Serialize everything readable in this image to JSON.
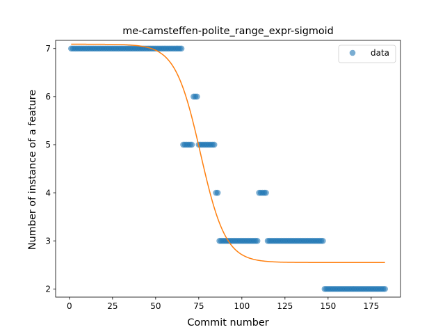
{
  "chart_data": {
    "type": "scatter",
    "title": "me-camsteffen-polite_range_expr-sigmoid",
    "xlabel": "Commit number",
    "ylabel": "Number of instance of a feature",
    "xlim": [
      -8,
      192
    ],
    "ylim": [
      1.83,
      7.17
    ],
    "xticks": [
      0,
      25,
      50,
      75,
      100,
      125,
      150,
      175
    ],
    "yticks": [
      2,
      3,
      4,
      5,
      6,
      7
    ],
    "legend": {
      "position": "top-right",
      "entries": [
        "data"
      ]
    },
    "colors": {
      "data": "#1f77b4",
      "fit": "#ff7f0e"
    },
    "series": [
      {
        "name": "data",
        "kind": "scatter",
        "runs": [
          {
            "x_start": 1,
            "x_end": 65,
            "y": 7
          },
          {
            "x_start": 66,
            "x_end": 71,
            "y": 5
          },
          {
            "x_start": 72,
            "x_end": 74,
            "y": 6
          },
          {
            "x_start": 75,
            "x_end": 84,
            "y": 5
          },
          {
            "x_start": 85,
            "x_end": 86,
            "y": 4
          },
          {
            "x_start": 87,
            "x_end": 109,
            "y": 3
          },
          {
            "x_start": 110,
            "x_end": 114,
            "y": 4
          },
          {
            "x_start": 115,
            "x_end": 147,
            "y": 3
          },
          {
            "x_start": 148,
            "x_end": 183,
            "y": 2
          }
        ]
      },
      {
        "kind": "line",
        "fit": {
          "model": "sigmoid",
          "upper": 7.09,
          "lower": 2.55,
          "midpoint": 76,
          "scale": 7.3
        },
        "x_range": [
          1,
          183
        ]
      }
    ]
  }
}
